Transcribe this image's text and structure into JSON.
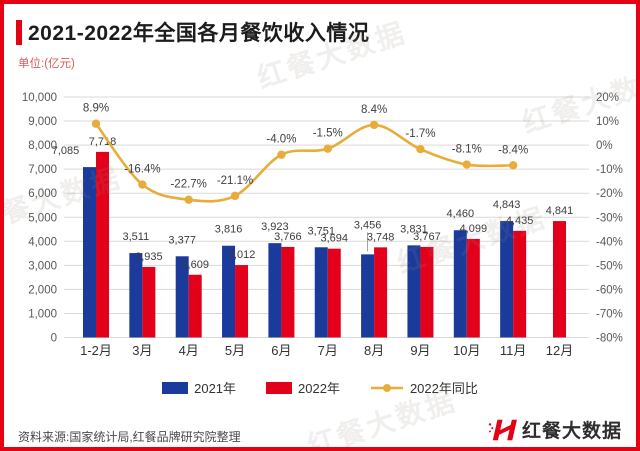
{
  "title": "2021-2022年全国各月餐饮收入情况",
  "unit_label": "单位:(亿元)",
  "source": "资料来源:国家统计局,红餐品牌研究院整理",
  "logo_text": "红餐大数据",
  "watermark_text": "红餐大数据",
  "colors": {
    "accent_red": "#e60014",
    "bar_2021": "#1a3a9c",
    "bar_2022": "#e3001b",
    "line_yoy": "#e8ac3a",
    "grid": "#d9d9d9",
    "axis_text": "#595959"
  },
  "chart_data": {
    "type": "bar",
    "subtype": "grouped bars with right-axis line (YoY)",
    "title": "2021-2022年全国各月餐饮收入情况",
    "unit": "亿元",
    "categories": [
      "1-2月",
      "3月",
      "4月",
      "5月",
      "6月",
      "7月",
      "8月",
      "9月",
      "10月",
      "11月",
      "12月"
    ],
    "series": [
      {
        "name": "2021年",
        "kind": "bar",
        "color": "#1a3a9c",
        "values": [
          7085,
          3511,
          3377,
          3816,
          3923,
          3751,
          3456,
          3831,
          4460,
          4843,
          null
        ]
      },
      {
        "name": "2022年",
        "kind": "bar",
        "color": "#e3001b",
        "values": [
          7718,
          2935,
          2609,
          3012,
          3766,
          3694,
          3748,
          3767,
          4099,
          4435,
          4841
        ]
      },
      {
        "name": "2022年同比",
        "kind": "line",
        "axis": "right",
        "color": "#e8ac3a",
        "values": [
          8.9,
          -16.4,
          -22.7,
          -21.1,
          -4.0,
          -1.5,
          8.4,
          -1.7,
          -8.1,
          -8.4,
          null
        ]
      }
    ],
    "left_axis": {
      "min": 0,
      "max": 10000,
      "step": 1000,
      "tick_labels": [
        "10,000",
        "9,000",
        "8,000",
        "7,000",
        "6,000",
        "5,000",
        "4,000",
        "3,000",
        "2,000",
        "1,000",
        "0"
      ]
    },
    "right_axis": {
      "min": -80,
      "max": 20,
      "step": 10,
      "tick_labels": [
        "20%",
        "10%",
        "0%",
        "-10%",
        "-20%",
        "-30%",
        "-40%",
        "-50%",
        "-60%",
        "-70%",
        "-80%"
      ]
    },
    "grid": true,
    "legend_position": "bottom",
    "legend": [
      "2021年",
      "2022年",
      "2022年同比"
    ]
  }
}
